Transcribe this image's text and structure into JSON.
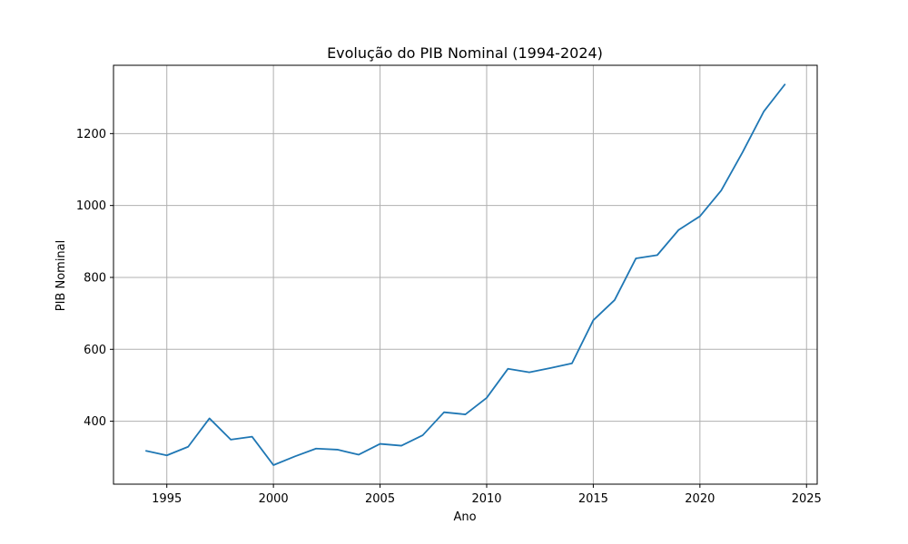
{
  "chart_data": {
    "type": "line",
    "title": "Evolução do PIB Nominal (1994-2024)",
    "xlabel": "Ano",
    "ylabel": "PIB Nominal",
    "xlim": [
      1992.5,
      2025.5
    ],
    "ylim": [
      225,
      1390
    ],
    "xticks": [
      1995,
      2000,
      2005,
      2010,
      2015,
      2020,
      2025
    ],
    "yticks": [
      400,
      600,
      800,
      1000,
      1200
    ],
    "grid": true,
    "color": "#1f77b4",
    "series": [
      {
        "x": [
          1994,
          1995,
          1996,
          1997,
          1998,
          1999,
          2000,
          2001,
          2002,
          2003,
          2004,
          2005,
          2006,
          2007,
          2008,
          2009,
          2010,
          2011,
          2012,
          2013,
          2014,
          2015,
          2016,
          2017,
          2018,
          2019,
          2020,
          2021,
          2022,
          2023,
          2024
        ],
        "y": [
          318,
          305,
          329,
          408,
          349,
          357,
          278,
          302,
          324,
          321,
          307,
          337,
          332,
          361,
          425,
          419,
          465,
          546,
          536,
          548,
          561,
          681,
          737,
          853,
          862,
          932,
          970,
          1042,
          1148,
          1262,
          1338
        ]
      }
    ]
  }
}
